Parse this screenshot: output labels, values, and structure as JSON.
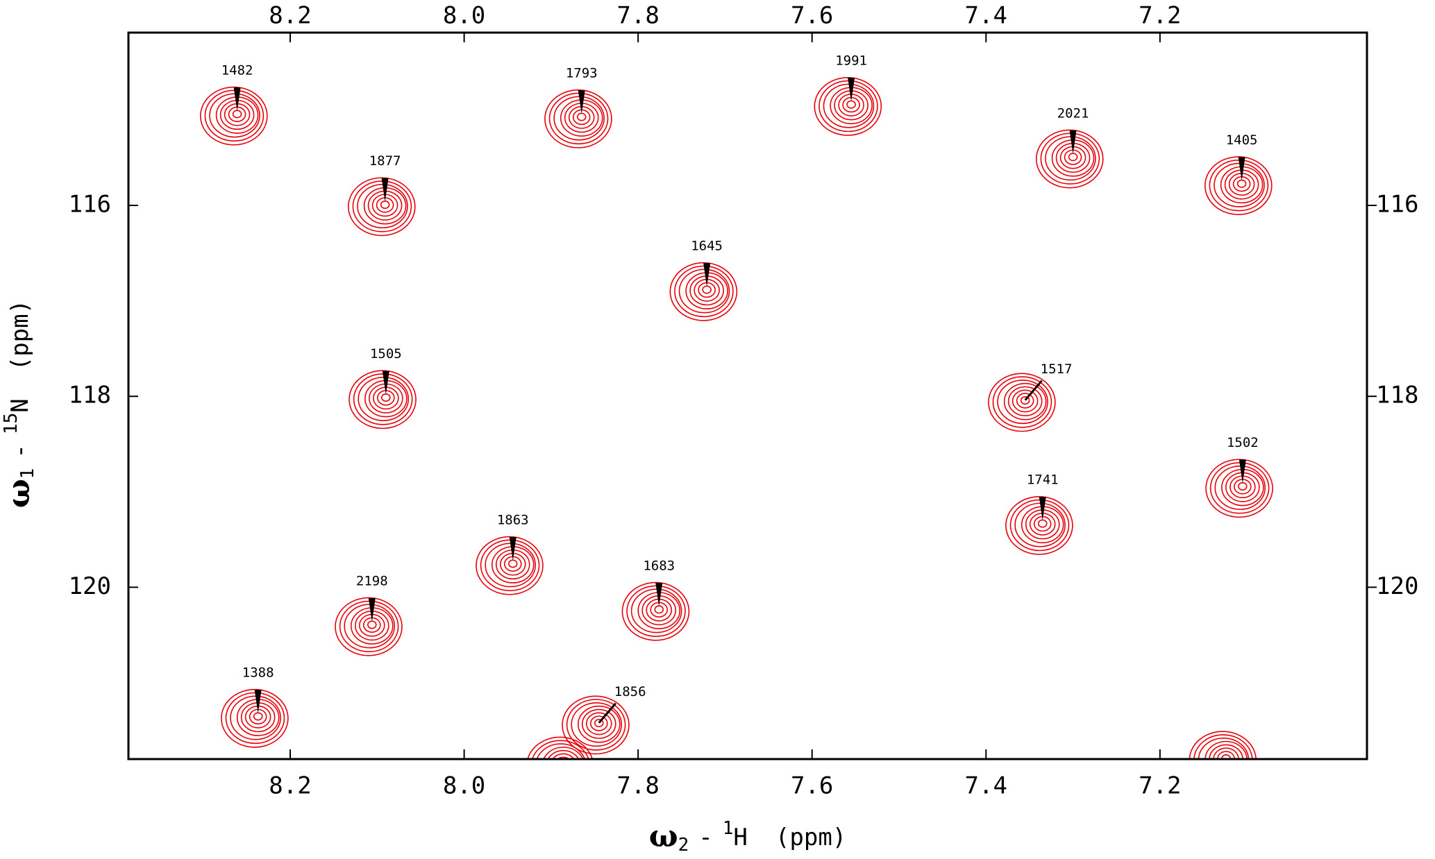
{
  "chart_data": {
    "type": "scatter",
    "x_label": {
      "symbol": "ω",
      "sub": "2",
      "sep": "-",
      "sup": "1",
      "nucleus": "H",
      "unit": "(ppm)"
    },
    "y_label": {
      "symbol": "ω",
      "sub": "1",
      "sep": "-",
      "sup": "15",
      "nucleus": "N",
      "unit": "(ppm)"
    },
    "color": "#e8000b",
    "xlim": [
      8.386,
      6.962
    ],
    "ylim": [
      114.19,
      121.8
    ],
    "xticks": [
      {
        "value": 8.2,
        "label": "8.2"
      },
      {
        "value": 8.0,
        "label": "8.0"
      },
      {
        "value": 7.8,
        "label": "7.8"
      },
      {
        "value": 7.6,
        "label": "7.6"
      },
      {
        "value": 7.4,
        "label": "7.4"
      },
      {
        "value": 7.2,
        "label": "7.2"
      }
    ],
    "yticks": [
      116,
      118,
      120
    ],
    "series": [
      {
        "labels": [
          "1482",
          "1793",
          "1991",
          "2021",
          "1405",
          "1877",
          "1645",
          "1505",
          "1517",
          "1502",
          "1741",
          "1863",
          "1683",
          "2198",
          "1388",
          "1856",
          null,
          null
        ],
        "label_side": [
          "top",
          "top",
          "top",
          "top",
          "top",
          "top",
          "top",
          "top",
          "right",
          "top",
          "top",
          "top",
          "top",
          "top",
          "top",
          "right",
          null,
          null
        ],
        "x": [
          8.261,
          7.865,
          7.555,
          7.3,
          7.106,
          8.091,
          7.721,
          8.09,
          7.355,
          7.105,
          7.335,
          7.944,
          7.776,
          8.106,
          8.237,
          7.845,
          7.886,
          7.124
        ],
        "values": [
          115.04,
          115.07,
          114.94,
          115.49,
          115.77,
          115.99,
          116.88,
          118.01,
          118.04,
          118.94,
          119.33,
          119.75,
          120.23,
          120.39,
          121.35,
          121.42,
          121.85,
          121.79
        ]
      }
    ]
  }
}
